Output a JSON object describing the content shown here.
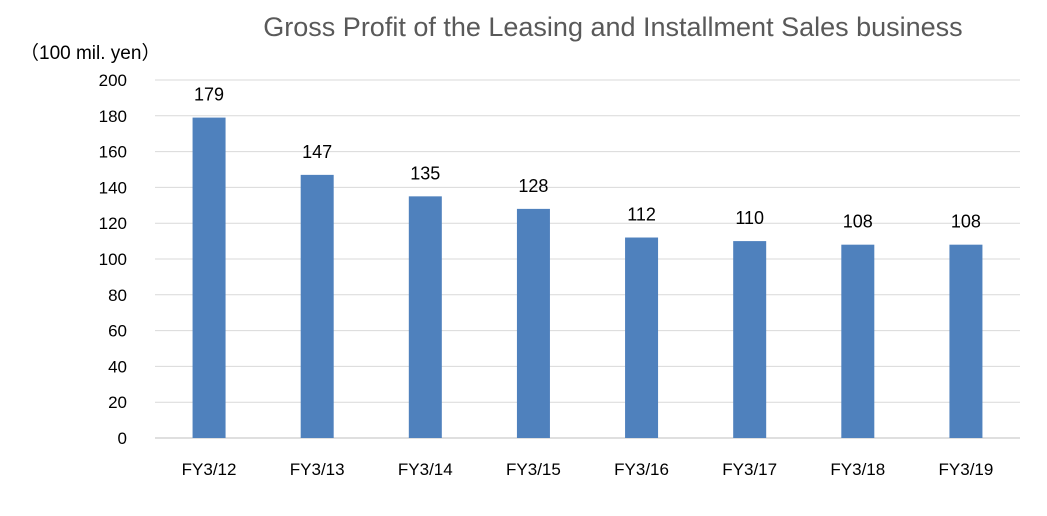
{
  "chart_data": {
    "type": "bar",
    "title": "Gross Profit of the Leasing and Installment Sales business",
    "unit_label": "（100 mil. yen）",
    "categories": [
      "FY3/12",
      "FY3/13",
      "FY3/14",
      "FY3/15",
      "FY3/16",
      "FY3/17",
      "FY3/18",
      "FY3/19"
    ],
    "values": [
      179,
      147,
      135,
      128,
      112,
      110,
      108,
      108
    ],
    "data_labels": [
      "179",
      "147",
      "135",
      "128",
      "112",
      "110",
      "108",
      "108"
    ],
    "ylim": [
      0,
      200
    ],
    "yticks": [
      "0",
      "20",
      "40",
      "60",
      "80",
      "100",
      "120",
      "140",
      "160",
      "180",
      "200"
    ],
    "grid": true,
    "legend": "none",
    "colors": {
      "bar": "#4f81bd",
      "grid": "#d9d9d9",
      "title": "#595959"
    }
  }
}
